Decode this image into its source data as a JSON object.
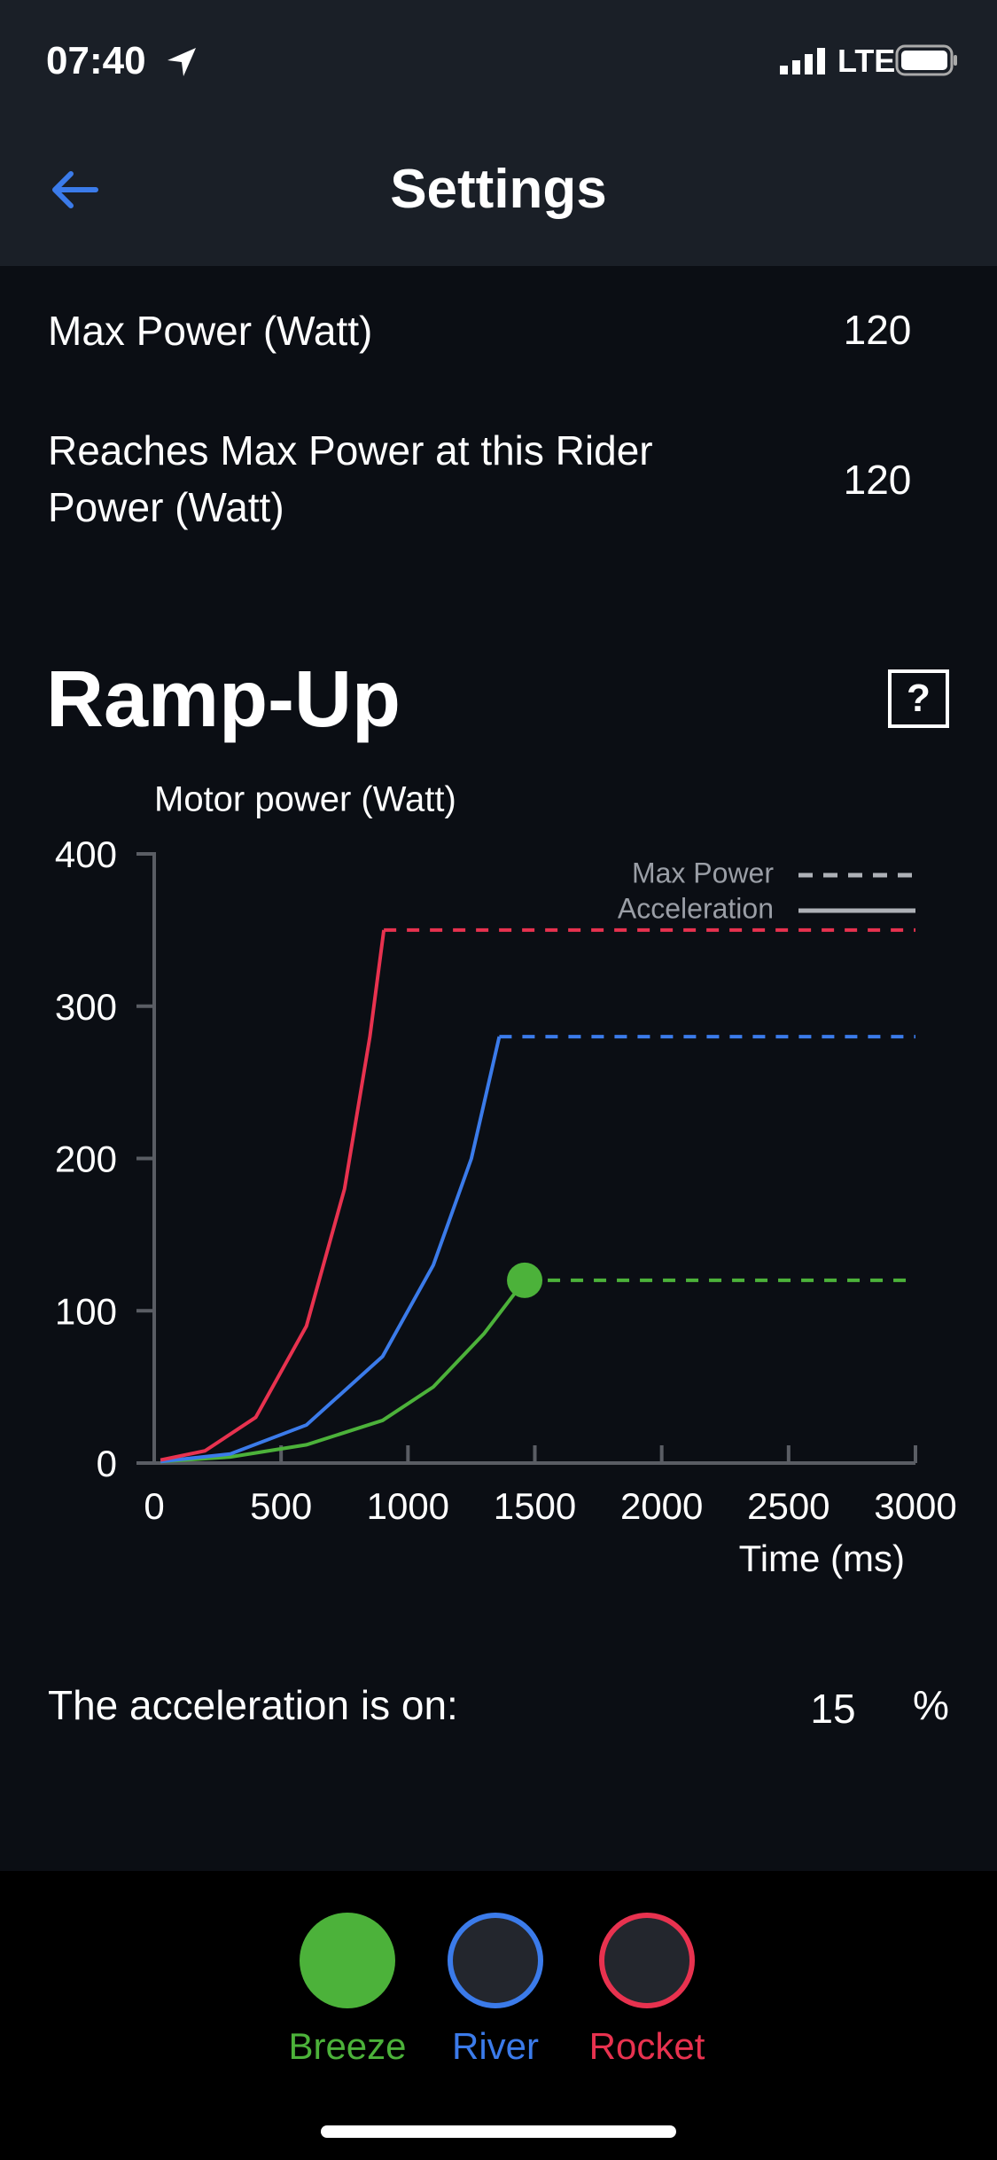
{
  "status": {
    "time": "07:40",
    "network": "LTE"
  },
  "header": {
    "title": "Settings"
  },
  "settings": [
    {
      "label": "Max Power (Watt)",
      "value": 120
    },
    {
      "label": "Reaches Max Power at this Rider\nPower (Watt)",
      "value": 120
    }
  ],
  "section": {
    "title": "Ramp-Up",
    "help": "?"
  },
  "chart_data": {
    "type": "line",
    "y_label": "Motor power (Watt)",
    "x_label": "Time (ms)",
    "xlim": [
      0,
      3000
    ],
    "ylim": [
      0,
      400
    ],
    "xticks": [
      0,
      500,
      1000,
      1500,
      2000,
      2500,
      3000
    ],
    "yticks": [
      0,
      100,
      200,
      300,
      400
    ],
    "legend": [
      {
        "label": "Max Power",
        "style": "dashed"
      },
      {
        "label": "Acceleration",
        "style": "solid"
      }
    ],
    "legend_position": "upper right",
    "series": [
      {
        "name": "Breeze",
        "color": "#4cb23a",
        "selected": true,
        "x": [
          25,
          300,
          600,
          900,
          1100,
          1300,
          1460
        ],
        "values": [
          1,
          4,
          12,
          28,
          50,
          85,
          120
        ],
        "max_power": 120
      },
      {
        "name": "River",
        "color": "#3b7bea",
        "selected": false,
        "x": [
          25,
          300,
          600,
          900,
          1100,
          1250,
          1360
        ],
        "values": [
          1,
          6,
          25,
          70,
          130,
          200,
          280
        ],
        "max_power": 280
      },
      {
        "name": "Rocket",
        "color": "#e8324f",
        "selected": false,
        "x": [
          25,
          200,
          400,
          600,
          750,
          850,
          905
        ],
        "values": [
          2,
          8,
          30,
          90,
          180,
          280,
          350
        ],
        "max_power": 350
      }
    ]
  },
  "acceleration": {
    "label": "The acceleration is on:",
    "value": 15,
    "unit": "%"
  }
}
